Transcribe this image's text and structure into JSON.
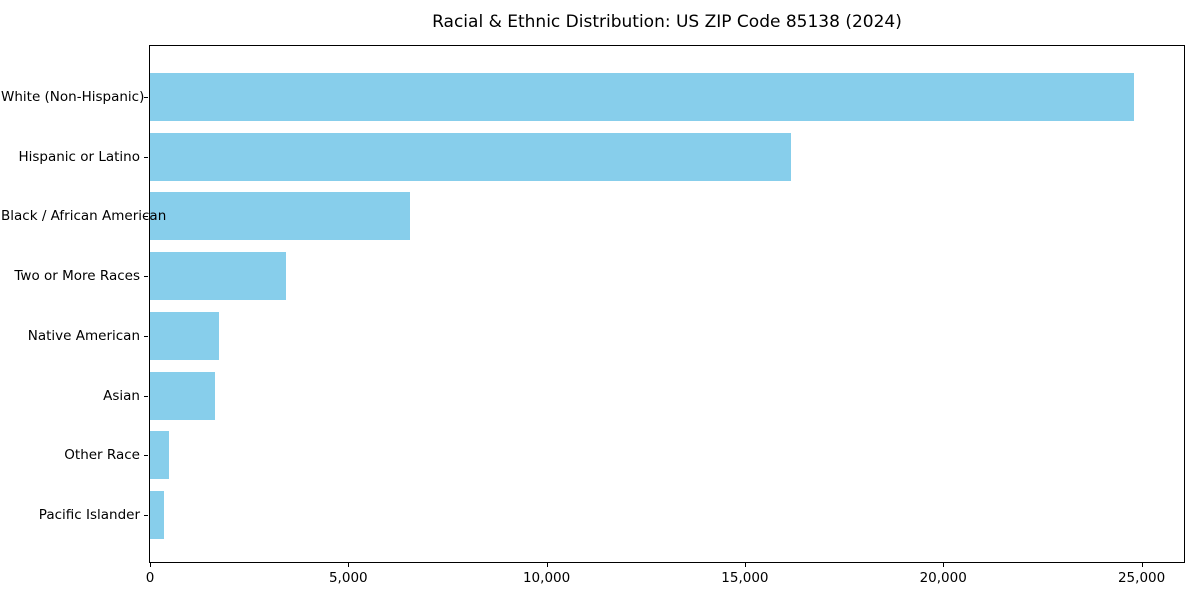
{
  "chart_data": {
    "type": "bar",
    "orientation": "horizontal",
    "title": "Racial & Ethnic Distribution: US ZIP Code 85138 (2024)",
    "categories": [
      "White (Non-Hispanic)",
      "Hispanic or Latino",
      "Black / African American",
      "Two or More Races",
      "Native American",
      "Asian",
      "Other Race",
      "Pacific Islander"
    ],
    "values": [
      24820,
      16160,
      6550,
      3420,
      1730,
      1640,
      490,
      345
    ],
    "xlabel": "",
    "ylabel": "",
    "xlim": [
      0,
      26070
    ],
    "x_ticks": [
      0,
      5000,
      10000,
      15000,
      20000,
      25000
    ],
    "x_tick_labels": [
      "0",
      "5,000",
      "10,000",
      "15,000",
      "20,000",
      "25,000"
    ],
    "bar_color": "#87CEEB",
    "grid": false,
    "legend": null,
    "background_color": "#ffffff"
  }
}
